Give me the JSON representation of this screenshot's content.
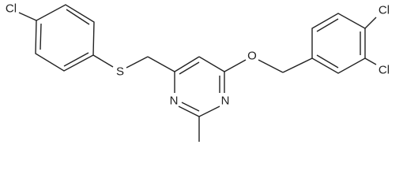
{
  "atoms": [
    "Cl",
    "S",
    "N",
    "N",
    "O",
    "Cl",
    "Cl"
  ]
}
